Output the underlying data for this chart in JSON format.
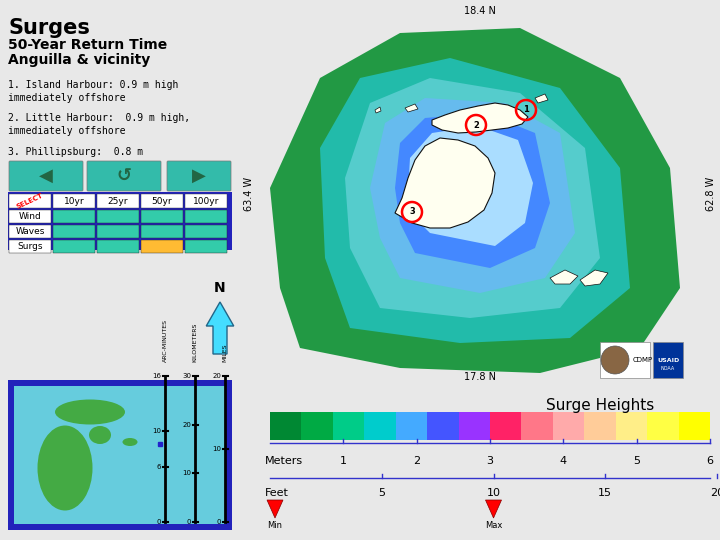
{
  "title": "Surges",
  "subtitle1": "50-Year Return Time",
  "subtitle2": "Anguilla & vicinity",
  "label1": "1. Island Harbour: 0.9 m high\nimmediately offshore",
  "label2": "2. Little Harbour:  0.9 m high,\nimmediately offshore",
  "label3": "3. Phillipsburg:  0.8 m",
  "map_lat_top": "18.4 N",
  "map_lat_bot": "17.8 N",
  "map_lon_left": "63.4 W",
  "map_lon_right": "62.8 W",
  "left_bg": "#e8e8e8",
  "map_outer_green": "#1aaa55",
  "map_mid_green": "#22bb66",
  "map_teal": "#22ccaa",
  "map_cyan": "#44dddd",
  "map_light_blue": "#88ccff",
  "map_blue": "#4499ff",
  "map_pale_blue": "#aaddff",
  "surge_heights_title": "Surge Heights",
  "meters_labels": [
    "1",
    "2",
    "3",
    "4",
    "5",
    "6"
  ],
  "feet_labels": [
    "5",
    "10",
    "15",
    "20"
  ],
  "table_header": [
    "SELECT",
    "10yr",
    "25yr",
    "50yr",
    "100yr"
  ],
  "table_rows": [
    "Wind",
    "Waves",
    "Surgs"
  ],
  "nav_button_color": "#33bbaa",
  "table_highlight": "#ffbb33",
  "table_cell_color": "#33ccaa",
  "table_border_color": "#2222bb",
  "map_border_color": "#44ddcc",
  "north_arrow_color": "#44ddff",
  "legend_bg": "#cceecc"
}
